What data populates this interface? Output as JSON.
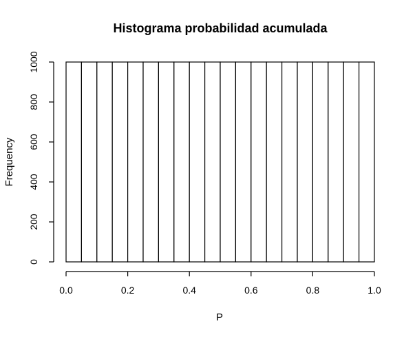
{
  "chart_data": {
    "type": "bar",
    "title": "Histograma probabilidad acumulada",
    "xlabel": "P",
    "ylabel": "Frequency",
    "bin_edges": [
      0.0,
      0.05,
      0.1,
      0.15,
      0.2,
      0.25,
      0.3,
      0.35,
      0.4,
      0.45,
      0.5,
      0.55,
      0.6,
      0.65,
      0.7,
      0.75,
      0.8,
      0.85,
      0.9,
      0.95,
      1.0
    ],
    "values": [
      1000,
      1000,
      1000,
      1000,
      1000,
      1000,
      1000,
      1000,
      1000,
      1000,
      1000,
      1000,
      1000,
      1000,
      1000,
      1000,
      1000,
      1000,
      1000,
      1000
    ],
    "xlim": [
      0,
      1
    ],
    "ylim": [
      0,
      1000
    ],
    "xticks": [
      "0.0",
      "0.2",
      "0.4",
      "0.6",
      "0.8",
      "1.0"
    ],
    "yticks": [
      "0",
      "200",
      "400",
      "600",
      "800",
      "1000"
    ],
    "grid": false,
    "legend": "none",
    "colors": {
      "bar_fill": "#ffffff",
      "bar_stroke": "#000000"
    }
  }
}
